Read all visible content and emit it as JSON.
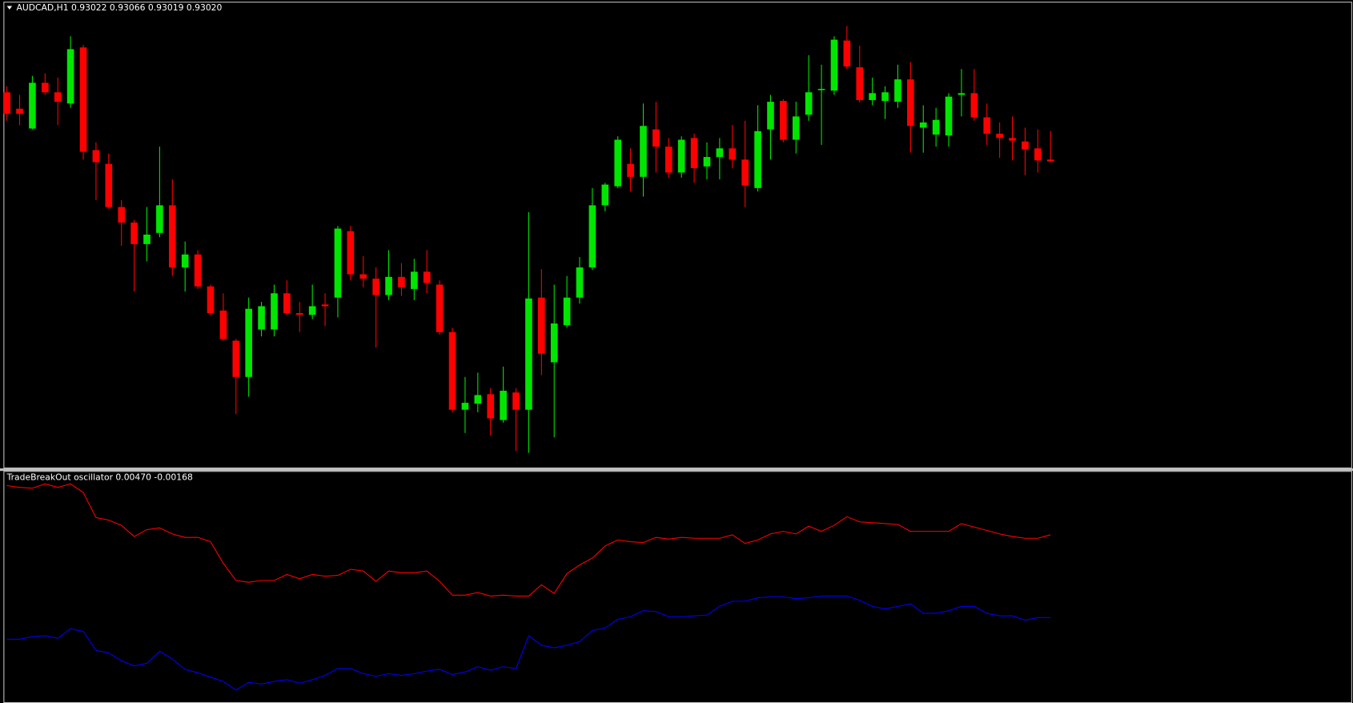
{
  "chart_data": [
    {
      "type": "candlestick",
      "title": "AUDCAD,H1  0.93022 0.93066 0.93019 0.93020",
      "up_color": "#00e600",
      "down_color": "#ff0000",
      "ylim": [
        0.9266,
        0.932
      ],
      "open": [
        0.93093,
        0.93074,
        0.93051,
        0.93104,
        0.93093,
        0.9308,
        0.93145,
        0.93026,
        0.9301,
        0.9296,
        0.92942,
        0.92917,
        0.9293,
        0.92962,
        0.9289,
        0.92905,
        0.92868,
        0.9284,
        0.92805,
        0.92763,
        0.92818,
        0.92818,
        0.9286,
        0.92837,
        0.92835,
        0.92847,
        0.92855,
        0.92932,
        0.92882,
        0.92877,
        0.92858,
        0.92879,
        0.92865,
        0.92885,
        0.9287,
        0.92815,
        0.92725,
        0.92732,
        0.92743,
        0.92713,
        0.92745,
        0.92725,
        0.92855,
        0.9278,
        0.92823,
        0.92855,
        0.9289,
        0.92962,
        0.92984,
        0.9301,
        0.92995,
        0.9305,
        0.9303,
        0.93,
        0.9304,
        0.93007,
        0.93018,
        0.93028,
        0.93015,
        0.92982,
        0.9305,
        0.93083,
        0.93038,
        0.93067,
        0.93096,
        0.93095,
        0.93153,
        0.93122,
        0.93084,
        0.93083,
        0.93082,
        0.93108,
        0.93052,
        0.93044,
        0.93043,
        0.9309,
        0.93092,
        0.93064,
        0.93045,
        0.9304,
        0.93036,
        0.93028,
        0.93015
      ],
      "high": [
        0.931,
        0.9309,
        0.93112,
        0.93115,
        0.9311,
        0.93158,
        0.93148,
        0.93035,
        0.93022,
        0.92968,
        0.92945,
        0.9296,
        0.9303,
        0.92992,
        0.9292,
        0.9291,
        0.9287,
        0.9286,
        0.92807,
        0.92855,
        0.9285,
        0.9287,
        0.92875,
        0.9285,
        0.9287,
        0.9286,
        0.92938,
        0.92938,
        0.92903,
        0.9289,
        0.9291,
        0.92895,
        0.929,
        0.9291,
        0.92875,
        0.9282,
        0.92763,
        0.92768,
        0.9275,
        0.92775,
        0.9275,
        0.92954,
        0.92888,
        0.9287,
        0.9288,
        0.92902,
        0.92982,
        0.92988,
        0.93042,
        0.93028,
        0.9308,
        0.93082,
        0.9304,
        0.93042,
        0.93045,
        0.93035,
        0.9304,
        0.93055,
        0.9306,
        0.93078,
        0.9309,
        0.93085,
        0.93082,
        0.93136,
        0.93125,
        0.93158,
        0.9317,
        0.93147,
        0.9311,
        0.931,
        0.93125,
        0.93128,
        0.93078,
        0.93075,
        0.93092,
        0.9312,
        0.9312,
        0.9308,
        0.93058,
        0.93065,
        0.93052,
        0.9305,
        0.93048
      ],
      "low": [
        0.9306,
        0.93055,
        0.9305,
        0.9309,
        0.93055,
        0.93075,
        0.93015,
        0.92968,
        0.92958,
        0.92915,
        0.92862,
        0.92897,
        0.92925,
        0.9288,
        0.92862,
        0.92865,
        0.92835,
        0.92805,
        0.9272,
        0.9274,
        0.9281,
        0.9281,
        0.92835,
        0.92815,
        0.9283,
        0.92822,
        0.92832,
        0.92875,
        0.92867,
        0.92797,
        0.92852,
        0.92857,
        0.92852,
        0.9286,
        0.92812,
        0.92722,
        0.92698,
        0.92722,
        0.92695,
        0.9271,
        0.92677,
        0.92675,
        0.92765,
        0.92693,
        0.9282,
        0.92848,
        0.92887,
        0.92955,
        0.92982,
        0.92978,
        0.92972,
        0.93,
        0.92994,
        0.92994,
        0.92988,
        0.92992,
        0.92992,
        0.93005,
        0.9296,
        0.92978,
        0.93015,
        0.93035,
        0.93022,
        0.9306,
        0.93032,
        0.9309,
        0.9312,
        0.93081,
        0.93078,
        0.93062,
        0.93075,
        0.93023,
        0.93023,
        0.9303,
        0.9303,
        0.93065,
        0.9306,
        0.93032,
        0.93017,
        0.93014,
        0.92997,
        0.93,
        0.93012
      ],
      "close": [
        0.93068,
        0.93068,
        0.93104,
        0.93093,
        0.93082,
        0.93143,
        0.93024,
        0.93012,
        0.9296,
        0.92942,
        0.92917,
        0.92928,
        0.92962,
        0.9289,
        0.92905,
        0.92868,
        0.92837,
        0.92807,
        0.92763,
        0.92842,
        0.92845,
        0.9286,
        0.92837,
        0.92835,
        0.92845,
        0.92845,
        0.92935,
        0.92882,
        0.92877,
        0.92858,
        0.92879,
        0.92867,
        0.92885,
        0.92872,
        0.92815,
        0.92725,
        0.92733,
        0.92742,
        0.92715,
        0.92747,
        0.92725,
        0.92854,
        0.9279,
        0.92825,
        0.92855,
        0.9289,
        0.92962,
        0.92986,
        0.93038,
        0.92995,
        0.93054,
        0.9303,
        0.93,
        0.93038,
        0.93005,
        0.93018,
        0.93028,
        0.93015,
        0.92985,
        0.93048,
        0.93082,
        0.93038,
        0.93065,
        0.93093,
        0.93097,
        0.93154,
        0.93123,
        0.93084,
        0.93092,
        0.93093,
        0.93108,
        0.93054,
        0.93058,
        0.93061,
        0.93088,
        0.93092,
        0.93064,
        0.93045,
        0.9304,
        0.93037,
        0.93027,
        0.93014,
        0.93013
      ]
    },
    {
      "type": "line",
      "title": "TradeBreakOut oscillator 0.00470 -0.00168",
      "ylim": [
        -0.00854,
        0.01008
      ],
      "series": [
        {
          "color": "#ff0000",
          "values": [
            0.00896,
            0.00882,
            0.00875,
            0.0091,
            0.00882,
            0.0091,
            0.0084,
            0.00637,
            0.00616,
            0.00574,
            0.00483,
            0.00539,
            0.00553,
            0.00504,
            0.00476,
            0.00476,
            0.00441,
            0.00266,
            0.00126,
            0.00112,
            0.00126,
            0.00126,
            0.00175,
            0.0014,
            0.00175,
            0.00161,
            0.00168,
            0.00217,
            0.00203,
            0.00119,
            0.00203,
            0.00189,
            0.00189,
            0.00203,
            0.00119,
            7e-05,
            7e-05,
            0.00028,
            0,
            7e-05,
            0,
            0,
            0.00091,
            0.00021,
            0.00182,
            0.00252,
            0.00308,
            0.00406,
            0.00455,
            0.00441,
            0.00434,
            0.00476,
            0.00462,
            0.00476,
            0.00469,
            0.00469,
            0.00469,
            0.00497,
            0.00427,
            0.00455,
            0.00504,
            0.00525,
            0.00504,
            0.00567,
            0.00525,
            0.00574,
            0.00644,
            0.00602,
            0.00595,
            0.00588,
            0.00581,
            0.00525,
            0.00525,
            0.00525,
            0.00525,
            0.00588,
            0.0056,
            0.00532,
            0.00504,
            0.00483,
            0.00469,
            0.00469,
            0.00497
          ]
        },
        {
          "color": "#0000ff",
          "values": [
            -0.0035,
            -0.0035,
            -0.00329,
            -0.00322,
            -0.00343,
            -0.00266,
            -0.00287,
            -0.00441,
            -0.00462,
            -0.00525,
            -0.00567,
            -0.00546,
            -0.00448,
            -0.00511,
            -0.00595,
            -0.00623,
            -0.00658,
            -0.00693,
            -0.00763,
            -0.007,
            -0.00714,
            -0.00693,
            -0.00679,
            -0.00707,
            -0.00679,
            -0.00644,
            -0.00588,
            -0.00588,
            -0.0063,
            -0.00651,
            -0.0063,
            -0.00644,
            -0.0063,
            -0.00609,
            -0.00595,
            -0.00637,
            -0.00616,
            -0.00574,
            -0.00602,
            -0.00574,
            -0.00588,
            -0.00322,
            -0.00399,
            -0.0042,
            -0.00399,
            -0.00371,
            -0.0028,
            -0.00259,
            -0.00189,
            -0.00168,
            -0.00119,
            -0.00126,
            -0.00168,
            -0.00168,
            -0.00161,
            -0.00154,
            -0.00084,
            -0.00042,
            -0.00042,
            -0.00014,
            -7e-05,
            -7e-05,
            -0.00021,
            -0.00014,
            0,
            0,
            0,
            -0.00035,
            -0.00084,
            -0.00105,
            -0.00084,
            -0.00063,
            -0.0014,
            -0.0014,
            -0.00119,
            -0.00084,
            -0.00084,
            -0.0014,
            -0.00161,
            -0.00161,
            -0.00196,
            -0.00175,
            -0.00175
          ]
        }
      ]
    }
  ]
}
